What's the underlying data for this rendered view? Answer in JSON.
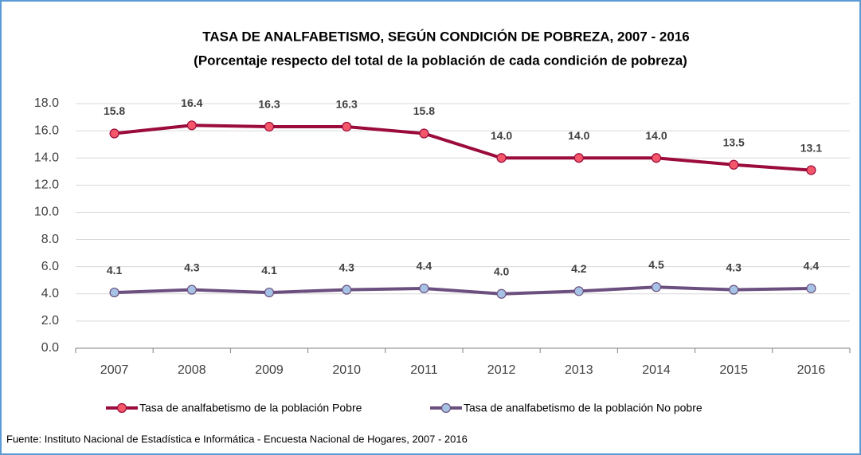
{
  "chart_data": {
    "type": "line",
    "title": "TASA DE ANALFABETISMO, SEGÚN CONDICIÓN DE POBREZA, 2007 - 2016",
    "subtitle": "(Porcentaje respecto del total de la población de cada condición de pobreza)",
    "source": "Fuente: Instituto Nacional de Estadística e Informática - Encuesta Nacional de Hogares, 2007 - 2016",
    "categories": [
      "2007",
      "2008",
      "2009",
      "2010",
      "2011",
      "2012",
      "2013",
      "2014",
      "2015",
      "2016"
    ],
    "series": [
      {
        "name": "Tasa de analfabetismo de la población Pobre",
        "color": "#9b0b3c",
        "marker_color": "#f4566a",
        "values": [
          15.8,
          16.4,
          16.3,
          16.3,
          15.8,
          14.0,
          14.0,
          14.0,
          13.5,
          13.1
        ],
        "value_labels": [
          "15.8",
          "16.4",
          "16.3",
          "16.3",
          "15.8",
          "14.0",
          "14.0",
          "14.0",
          "13.5",
          "13.1"
        ]
      },
      {
        "name": "Tasa de analfabetismo de la población No pobre",
        "color": "#6b4f7e",
        "marker_color": "#a6c3e6",
        "values": [
          4.1,
          4.3,
          4.1,
          4.3,
          4.4,
          4.0,
          4.2,
          4.5,
          4.3,
          4.4
        ],
        "value_labels": [
          "4.1",
          "4.3",
          "4.1",
          "4.3",
          "4.4",
          "4.0",
          "4.2",
          "4.5",
          "4.3",
          "4.4"
        ]
      }
    ],
    "ylim": [
      0,
      18
    ],
    "yticks": [
      {
        "value": 0,
        "label": "0.0"
      },
      {
        "value": 2,
        "label": "2.0"
      },
      {
        "value": 4,
        "label": "4.0"
      },
      {
        "value": 6,
        "label": "6.0"
      },
      {
        "value": 8,
        "label": "8.0"
      },
      {
        "value": 10,
        "label": "10.0"
      },
      {
        "value": 12,
        "label": "12.0"
      },
      {
        "value": 14,
        "label": "14.0"
      },
      {
        "value": 16,
        "label": "16.0"
      },
      {
        "value": 18,
        "label": "18.0"
      }
    ],
    "grid": true,
    "legend": "bottom"
  }
}
